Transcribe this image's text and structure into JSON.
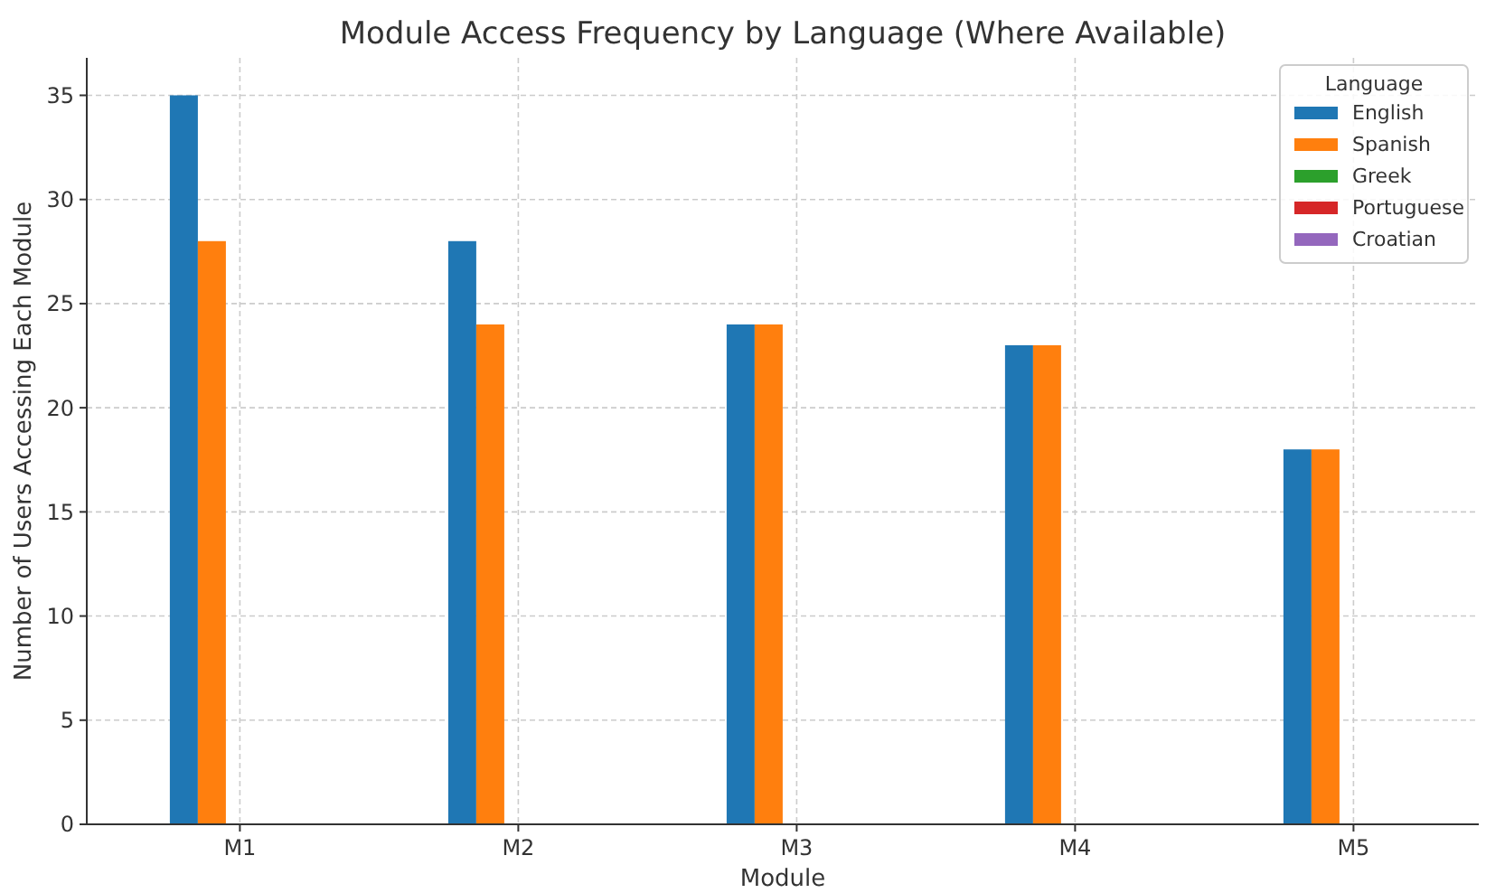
{
  "chart_data": {
    "type": "bar",
    "title": "Module Access Frequency by Language (Where Available)",
    "xlabel": "Module",
    "ylabel": "Number of Users Accessing Each Module",
    "legend_title": "Language",
    "categories": [
      "M1",
      "M2",
      "M3",
      "M4",
      "M5"
    ],
    "series": [
      {
        "name": "English",
        "color": "#1f77b4",
        "values": [
          35,
          28,
          24,
          23,
          18
        ]
      },
      {
        "name": "Spanish",
        "color": "#ff7f0e",
        "values": [
          28,
          24,
          24,
          23,
          18
        ]
      },
      {
        "name": "Greek",
        "color": "#2ca02c",
        "values": [
          null,
          null,
          null,
          null,
          null
        ]
      },
      {
        "name": "Portuguese",
        "color": "#d62728",
        "values": [
          null,
          null,
          null,
          null,
          null
        ]
      },
      {
        "name": "Croatian",
        "color": "#9467bd",
        "values": [
          null,
          null,
          null,
          null,
          null
        ]
      }
    ],
    "ylim": [
      0,
      36.8
    ],
    "yticks": [
      0,
      5,
      10,
      15,
      20,
      25,
      30,
      35
    ],
    "grid": true,
    "legend": "top right"
  }
}
